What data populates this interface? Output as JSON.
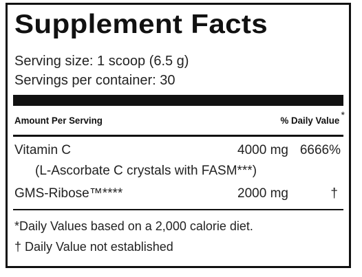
{
  "label": {
    "title": "Supplement Facts",
    "serving_size": "Serving size: 1 scoop (6.5 g)",
    "servings_per_container": "Servings per container: 30",
    "header": {
      "amount_per_serving": "Amount Per Serving",
      "daily_value": "% Daily Value",
      "daily_value_mark": "*"
    },
    "nutrients": [
      {
        "name": "Vitamin C",
        "amount": "4000 mg",
        "daily_value": "6666%"
      },
      {
        "name": "(L-Ascorbate C crystals with FASM***)"
      },
      {
        "name": "GMS-Ribose™****",
        "amount": "2000 mg",
        "daily_value": "†"
      }
    ],
    "footnotes": [
      "*Daily Values based on a 2,000 calorie diet.",
      "† Daily Value not established"
    ]
  }
}
